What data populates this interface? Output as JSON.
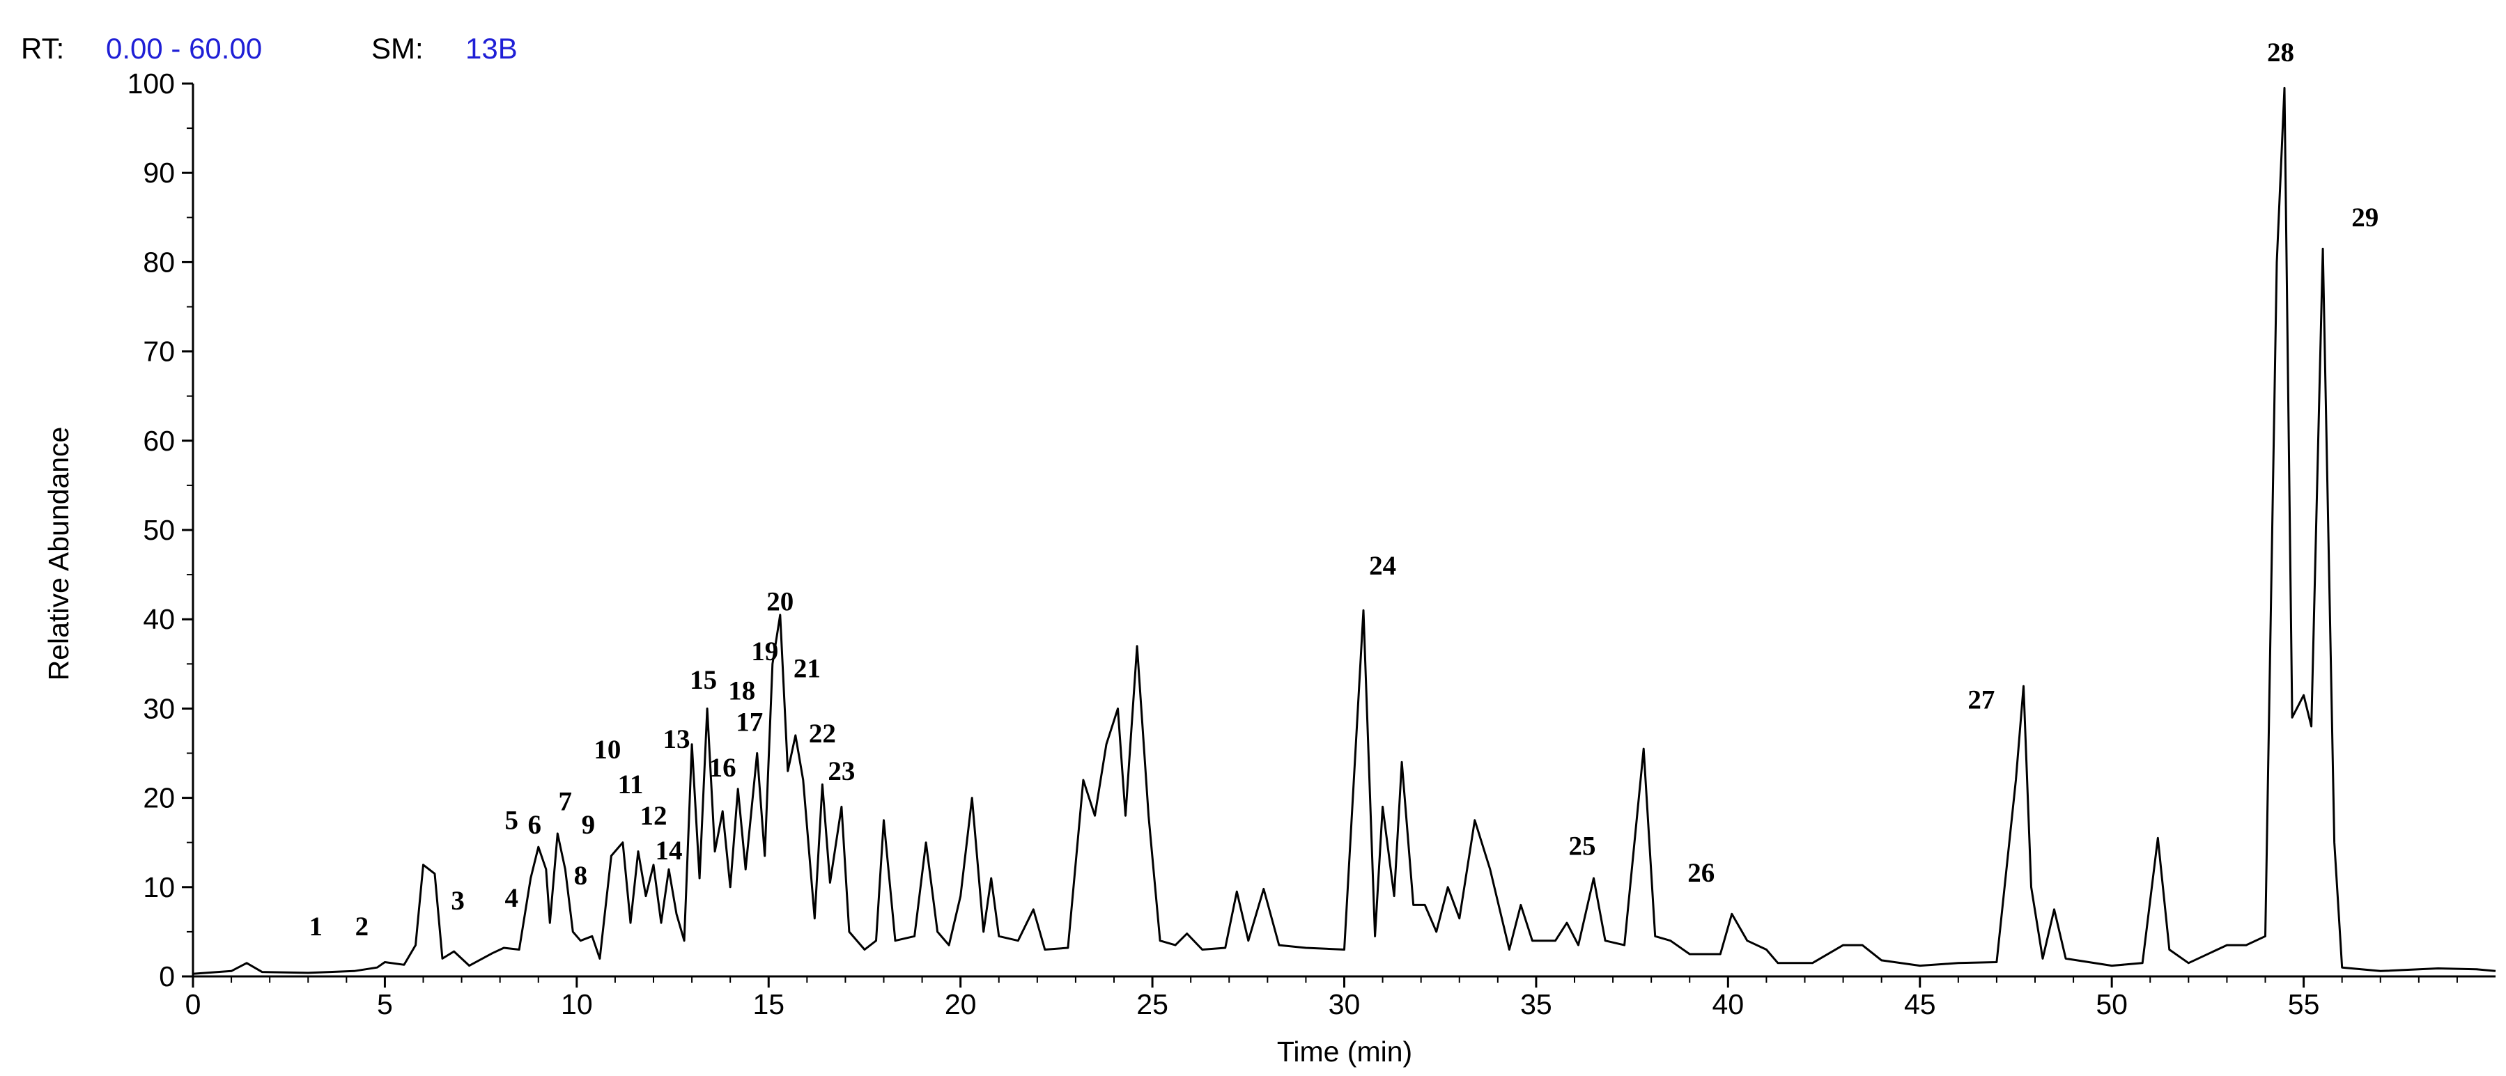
{
  "header": {
    "rt_label": "RT:",
    "rt_range": "0.00 - 60.00",
    "sm_label": "SM:",
    "sm_value": "13B",
    "label_color": "#000000",
    "value_color": "#1f1fd6"
  },
  "chart_data": {
    "type": "line",
    "title": "",
    "xlabel": "Time (min)",
    "ylabel": "Relative Abundance",
    "xlim": [
      0,
      60
    ],
    "ylim": [
      0,
      100
    ],
    "x_ticks": [
      0,
      5,
      10,
      15,
      20,
      25,
      30,
      35,
      40,
      45,
      50,
      55
    ],
    "y_ticks": [
      0,
      10,
      20,
      30,
      40,
      50,
      60,
      70,
      80,
      90,
      100
    ],
    "grid": false,
    "line_color": "#000000",
    "series": [
      {
        "points": [
          [
            0,
            0.3
          ],
          [
            1.0,
            0.6
          ],
          [
            1.4,
            1.5
          ],
          [
            1.8,
            0.5
          ],
          [
            3.0,
            0.4
          ],
          [
            4.2,
            0.6
          ],
          [
            4.8,
            1.0
          ],
          [
            5.0,
            1.6
          ],
          [
            5.5,
            1.3
          ],
          [
            5.8,
            3.5
          ],
          [
            6.0,
            12.5
          ],
          [
            6.3,
            11.5
          ],
          [
            6.5,
            2.0
          ],
          [
            6.8,
            2.8
          ],
          [
            7.2,
            1.2
          ],
          [
            7.8,
            2.6
          ],
          [
            8.1,
            3.2
          ],
          [
            8.5,
            3.0
          ],
          [
            8.8,
            11.0
          ],
          [
            9.0,
            14.5
          ],
          [
            9.2,
            12.0
          ],
          [
            9.3,
            6.0
          ],
          [
            9.5,
            16.0
          ],
          [
            9.7,
            12.0
          ],
          [
            9.9,
            5.0
          ],
          [
            10.1,
            4.0
          ],
          [
            10.4,
            4.5
          ],
          [
            10.6,
            2.0
          ],
          [
            10.9,
            13.5
          ],
          [
            11.2,
            15.0
          ],
          [
            11.4,
            6.0
          ],
          [
            11.6,
            14.0
          ],
          [
            11.8,
            9.0
          ],
          [
            12.0,
            12.5
          ],
          [
            12.2,
            6.0
          ],
          [
            12.4,
            12.0
          ],
          [
            12.6,
            7.0
          ],
          [
            12.8,
            4.0
          ],
          [
            13.0,
            26.0
          ],
          [
            13.2,
            11.0
          ],
          [
            13.4,
            30.0
          ],
          [
            13.6,
            14.0
          ],
          [
            13.8,
            18.5
          ],
          [
            14.0,
            10.0
          ],
          [
            14.2,
            21.0
          ],
          [
            14.4,
            12.0
          ],
          [
            14.7,
            25.0
          ],
          [
            14.9,
            13.5
          ],
          [
            15.1,
            35.0
          ],
          [
            15.3,
            40.5
          ],
          [
            15.5,
            23.0
          ],
          [
            15.7,
            27.0
          ],
          [
            15.9,
            22.0
          ],
          [
            16.2,
            6.5
          ],
          [
            16.4,
            21.5
          ],
          [
            16.6,
            10.5
          ],
          [
            16.9,
            19.0
          ],
          [
            17.1,
            5.0
          ],
          [
            17.5,
            3.0
          ],
          [
            17.8,
            4.0
          ],
          [
            18.0,
            17.5
          ],
          [
            18.3,
            4.0
          ],
          [
            18.8,
            4.5
          ],
          [
            19.1,
            15.0
          ],
          [
            19.4,
            5.0
          ],
          [
            19.7,
            3.5
          ],
          [
            20.0,
            9.0
          ],
          [
            20.3,
            20.0
          ],
          [
            20.6,
            5.0
          ],
          [
            20.8,
            11.0
          ],
          [
            21.0,
            4.5
          ],
          [
            21.5,
            4.0
          ],
          [
            21.9,
            7.5
          ],
          [
            22.2,
            3.0
          ],
          [
            22.8,
            3.2
          ],
          [
            23.2,
            22.0
          ],
          [
            23.5,
            18.0
          ],
          [
            23.8,
            26.0
          ],
          [
            24.1,
            30.0
          ],
          [
            24.3,
            18.0
          ],
          [
            24.6,
            37.0
          ],
          [
            24.9,
            18.0
          ],
          [
            25.2,
            4.0
          ],
          [
            25.6,
            3.5
          ],
          [
            25.9,
            4.8
          ],
          [
            26.3,
            3.0
          ],
          [
            26.9,
            3.2
          ],
          [
            27.2,
            9.5
          ],
          [
            27.5,
            4.0
          ],
          [
            27.9,
            9.8
          ],
          [
            28.3,
            3.5
          ],
          [
            29.0,
            3.2
          ],
          [
            30.0,
            3.0
          ],
          [
            30.5,
            41.0
          ],
          [
            30.8,
            4.5
          ],
          [
            31.0,
            19.0
          ],
          [
            31.3,
            9.0
          ],
          [
            31.5,
            24.0
          ],
          [
            31.8,
            8.0
          ],
          [
            32.1,
            8.0
          ],
          [
            32.4,
            5.0
          ],
          [
            32.7,
            10.0
          ],
          [
            33.0,
            6.5
          ],
          [
            33.4,
            17.5
          ],
          [
            33.8,
            12.0
          ],
          [
            34.3,
            3.0
          ],
          [
            34.6,
            8.0
          ],
          [
            34.9,
            4.0
          ],
          [
            35.5,
            4.0
          ],
          [
            35.8,
            6.0
          ],
          [
            36.1,
            3.5
          ],
          [
            36.5,
            11.0
          ],
          [
            36.8,
            4.0
          ],
          [
            37.3,
            3.5
          ],
          [
            37.8,
            25.5
          ],
          [
            38.1,
            4.5
          ],
          [
            38.5,
            4.0
          ],
          [
            39.0,
            2.5
          ],
          [
            39.8,
            2.5
          ],
          [
            40.1,
            7.0
          ],
          [
            40.5,
            4.0
          ],
          [
            41.0,
            3.0
          ],
          [
            41.3,
            1.5
          ],
          [
            42.2,
            1.5
          ],
          [
            43.0,
            3.5
          ],
          [
            43.5,
            3.5
          ],
          [
            44.0,
            1.8
          ],
          [
            45.0,
            1.2
          ],
          [
            46.0,
            1.5
          ],
          [
            47.0,
            1.6
          ],
          [
            47.5,
            22.0
          ],
          [
            47.7,
            32.5
          ],
          [
            47.9,
            10.0
          ],
          [
            48.2,
            2.0
          ],
          [
            48.5,
            7.5
          ],
          [
            48.8,
            2.0
          ],
          [
            50.0,
            1.2
          ],
          [
            50.8,
            1.5
          ],
          [
            51.2,
            15.5
          ],
          [
            51.5,
            3.0
          ],
          [
            52.0,
            1.5
          ],
          [
            53.0,
            3.5
          ],
          [
            53.5,
            3.5
          ],
          [
            54.0,
            4.5
          ],
          [
            54.3,
            80.0
          ],
          [
            54.5,
            99.5
          ],
          [
            54.7,
            29.0
          ],
          [
            55.0,
            31.5
          ],
          [
            55.2,
            28.0
          ],
          [
            55.5,
            81.5
          ],
          [
            55.8,
            15.0
          ],
          [
            56.0,
            1.0
          ],
          [
            57.0,
            0.6
          ],
          [
            58.5,
            0.9
          ],
          [
            59.5,
            0.8
          ],
          [
            60,
            0.6
          ]
        ]
      }
    ],
    "peak_labels": [
      {
        "text": "1",
        "x": 3.2,
        "y": 4.6
      },
      {
        "text": "2",
        "x": 4.4,
        "y": 4.6
      },
      {
        "text": "3",
        "x": 6.9,
        "y": 7.5
      },
      {
        "text": "4",
        "x": 8.3,
        "y": 7.8
      },
      {
        "text": "5",
        "x": 8.3,
        "y": 16.5
      },
      {
        "text": "6",
        "x": 8.9,
        "y": 16.0
      },
      {
        "text": "7",
        "x": 9.7,
        "y": 18.6
      },
      {
        "text": "8",
        "x": 10.1,
        "y": 10.3
      },
      {
        "text": "9",
        "x": 10.3,
        "y": 16.0
      },
      {
        "text": "10",
        "x": 10.8,
        "y": 24.4
      },
      {
        "text": "11",
        "x": 11.4,
        "y": 20.5
      },
      {
        "text": "12",
        "x": 12.0,
        "y": 17.0
      },
      {
        "text": "13",
        "x": 12.6,
        "y": 25.6
      },
      {
        "text": "14",
        "x": 12.4,
        "y": 13.1
      },
      {
        "text": "15",
        "x": 13.3,
        "y": 32.2
      },
      {
        "text": "16",
        "x": 13.8,
        "y": 22.4
      },
      {
        "text": "17",
        "x": 14.5,
        "y": 27.5
      },
      {
        "text": "18",
        "x": 14.3,
        "y": 31.0
      },
      {
        "text": "19",
        "x": 14.9,
        "y": 35.4
      },
      {
        "text": "20",
        "x": 15.3,
        "y": 41.0
      },
      {
        "text": "21",
        "x": 16.0,
        "y": 33.5
      },
      {
        "text": "22",
        "x": 16.4,
        "y": 26.2
      },
      {
        "text": "23",
        "x": 16.9,
        "y": 22.0
      },
      {
        "text": "24",
        "x": 31.0,
        "y": 45.0
      },
      {
        "text": "25",
        "x": 36.2,
        "y": 13.6
      },
      {
        "text": "26",
        "x": 39.3,
        "y": 10.6
      },
      {
        "text": "27",
        "x": 46.6,
        "y": 30.0
      },
      {
        "text": "28",
        "x": 54.4,
        "y": 102.5
      },
      {
        "text": "29",
        "x": 56.6,
        "y": 84.0
      }
    ]
  }
}
